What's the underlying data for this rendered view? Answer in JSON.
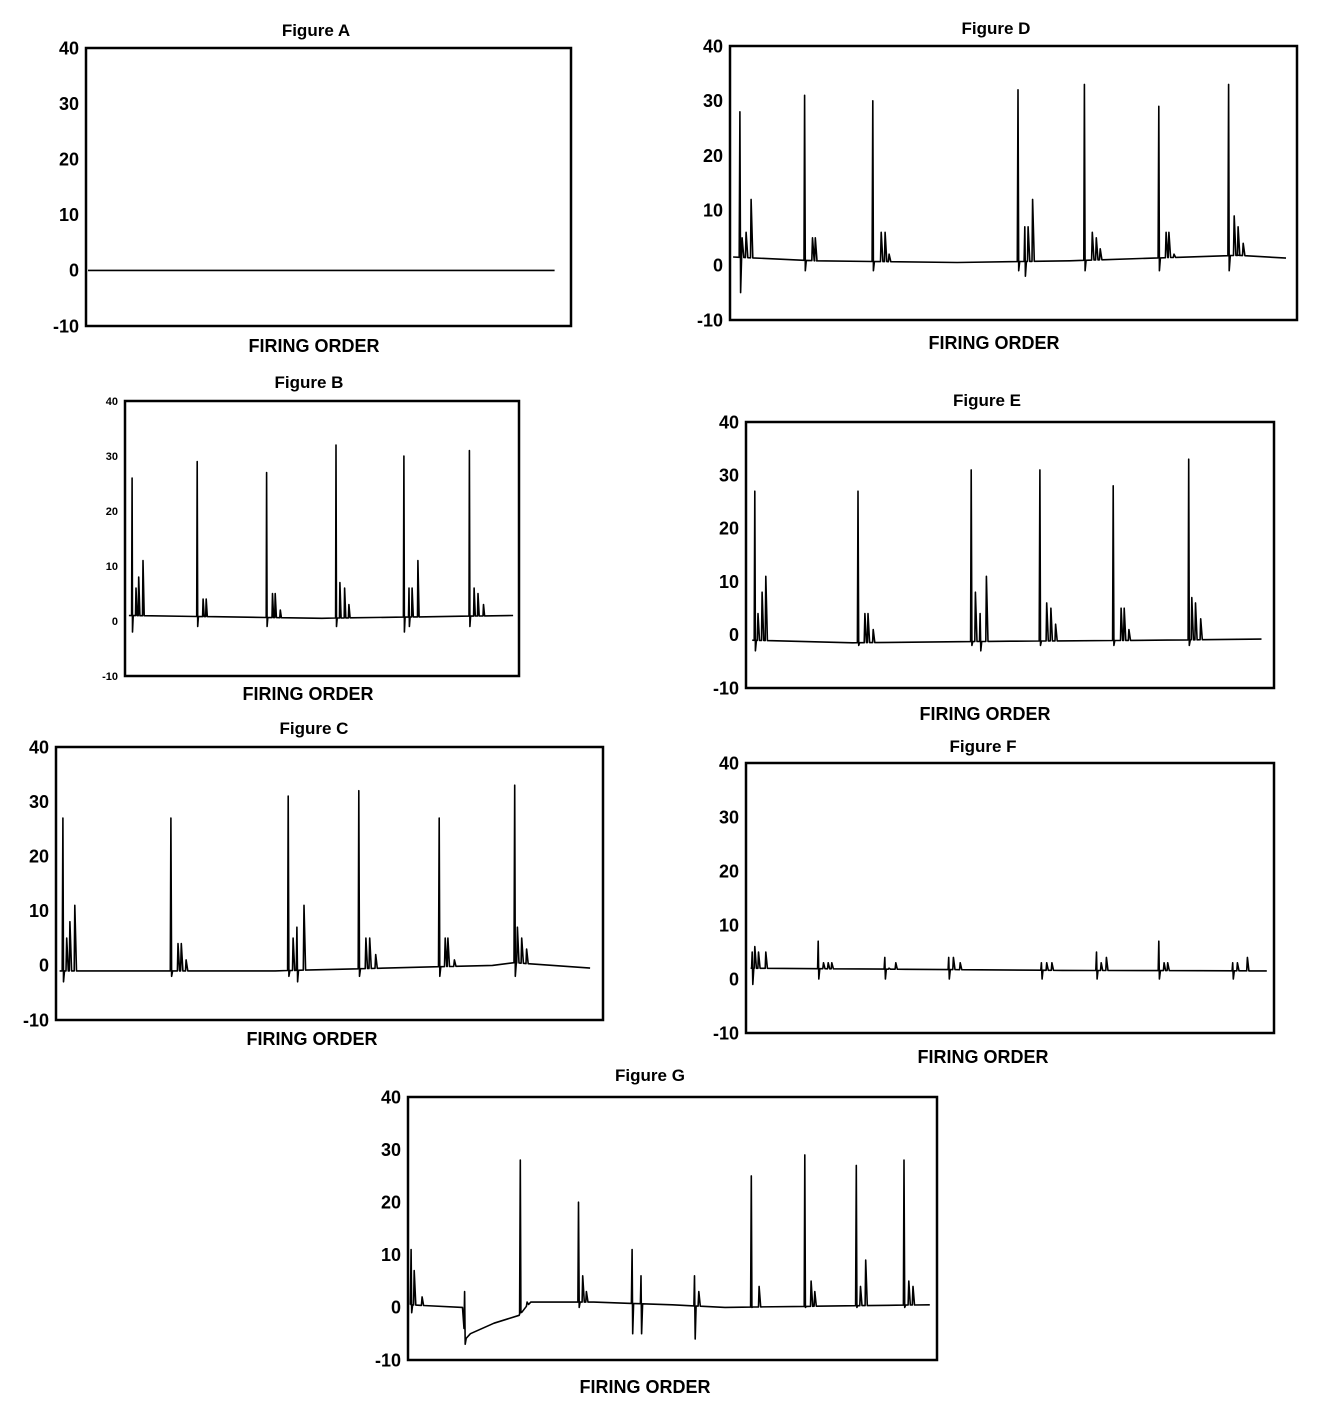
{
  "chart_data": [
    {
      "id": "A",
      "type": "line",
      "title": "Figure A",
      "xlabel": "FIRING ORDER",
      "ylabel": "",
      "ylim": [
        -10,
        40
      ],
      "yticks": [
        "40",
        "30",
        "20",
        "10",
        "0",
        "-10"
      ],
      "x_range": [
        0,
        97
      ],
      "baseline": [
        [
          0,
          0
        ],
        [
          97,
          0
        ]
      ],
      "spikes": []
    },
    {
      "id": "B",
      "type": "line",
      "title": "Figure B",
      "xlabel": "FIRING ORDER",
      "ylabel": "",
      "ylim": [
        -10,
        40
      ],
      "yticks": [
        "40",
        "30",
        "20",
        "10",
        "0",
        "-10"
      ],
      "x_range": [
        0.5,
        99
      ],
      "baseline": [
        [
          0,
          1
        ],
        [
          50,
          0.5
        ],
        [
          99,
          1
        ]
      ],
      "spikes": [
        [
          1.3,
          26,
          -2
        ],
        [
          2.3,
          6
        ],
        [
          3,
          8
        ],
        [
          4.1,
          11
        ],
        [
          18,
          29,
          -1
        ],
        [
          19.5,
          4
        ],
        [
          20.3,
          4
        ],
        [
          35.8,
          27,
          -1
        ],
        [
          37.3,
          5
        ],
        [
          38,
          5
        ],
        [
          39.3,
          2
        ],
        [
          53.6,
          32,
          -1
        ],
        [
          54.6,
          7
        ],
        [
          55.8,
          6
        ],
        [
          56.9,
          3
        ],
        [
          71,
          30,
          -2
        ],
        [
          72.3,
          6,
          -1
        ],
        [
          73.1,
          6
        ],
        [
          74.6,
          11
        ],
        [
          87.8,
          31,
          -1
        ],
        [
          89,
          6
        ],
        [
          90,
          5
        ],
        [
          91.4,
          3
        ]
      ]
    },
    {
      "id": "C",
      "type": "line",
      "title": "Figure C",
      "xlabel": "FIRING ORDER",
      "ylabel": "",
      "ylim": [
        -10,
        40
      ],
      "yticks": [
        "40",
        "30",
        "20",
        "10",
        "0",
        "-10"
      ],
      "x_range": [
        0.3,
        98
      ],
      "baseline": [
        [
          0,
          -1
        ],
        [
          40,
          -1
        ],
        [
          80,
          0
        ],
        [
          84,
          0.5
        ],
        [
          98,
          -0.5
        ]
      ],
      "spikes": [
        [
          0.9,
          27,
          -3
        ],
        [
          1.6,
          5
        ],
        [
          2.2,
          8
        ],
        [
          3.1,
          11
        ],
        [
          20.8,
          27,
          -2
        ],
        [
          22.1,
          4
        ],
        [
          22.7,
          4
        ],
        [
          23.6,
          1
        ],
        [
          42.4,
          31,
          -2
        ],
        [
          43.3,
          5
        ],
        [
          44,
          7,
          -3
        ],
        [
          45.3,
          11
        ],
        [
          55.4,
          32,
          -2
        ],
        [
          56.7,
          5
        ],
        [
          57.4,
          5
        ],
        [
          58.5,
          2
        ],
        [
          70.2,
          27,
          -2
        ],
        [
          71.3,
          5
        ],
        [
          71.8,
          5
        ],
        [
          73,
          1
        ],
        [
          84.1,
          33,
          -2
        ],
        [
          84.6,
          7
        ],
        [
          85.4,
          5
        ],
        [
          86.3,
          3
        ]
      ]
    },
    {
      "id": "D",
      "type": "line",
      "title": "Figure D",
      "xlabel": "FIRING ORDER",
      "ylabel": "",
      "ylim": [
        -10,
        40
      ],
      "yticks": [
        "40",
        "30",
        "20",
        "10",
        "0",
        "-10"
      ],
      "x_range": [
        0.2,
        98.4
      ],
      "baseline": [
        [
          0,
          1.5
        ],
        [
          15,
          0.8
        ],
        [
          40,
          0.5
        ],
        [
          60,
          0.8
        ],
        [
          90,
          1.8
        ],
        [
          98.4,
          1.3
        ]
      ],
      "spikes": [
        [
          1.4,
          28,
          -5
        ],
        [
          1.8,
          5
        ],
        [
          2.5,
          6
        ],
        [
          3.4,
          12
        ],
        [
          12.9,
          31,
          -1
        ],
        [
          14.3,
          5
        ],
        [
          14.8,
          5
        ],
        [
          25,
          30,
          -1
        ],
        [
          26.5,
          6
        ],
        [
          27.2,
          6
        ],
        [
          27.9,
          2
        ],
        [
          50.8,
          32,
          -1
        ],
        [
          52,
          7,
          -2
        ],
        [
          52.6,
          7
        ],
        [
          53.4,
          12
        ],
        [
          62.6,
          33,
          -1
        ],
        [
          64,
          6
        ],
        [
          64.7,
          5
        ],
        [
          65.4,
          3
        ],
        [
          75.8,
          29,
          -1
        ],
        [
          77.1,
          6
        ],
        [
          77.6,
          6
        ],
        [
          78.5,
          2
        ],
        [
          88.2,
          33,
          -1
        ],
        [
          89.2,
          9
        ],
        [
          89.9,
          7
        ],
        [
          90.8,
          4
        ]
      ]
    },
    {
      "id": "E",
      "type": "line",
      "title": "Figure E",
      "xlabel": "FIRING ORDER",
      "ylabel": "",
      "ylim": [
        -10,
        40
      ],
      "yticks": [
        "40",
        "30",
        "20",
        "10",
        "0",
        "-10"
      ],
      "x_range": [
        0.8,
        98
      ],
      "baseline": [
        [
          0,
          -1
        ],
        [
          20,
          -1.5
        ],
        [
          50,
          -1.2
        ],
        [
          80,
          -1
        ],
        [
          98,
          -0.8
        ]
      ],
      "spikes": [
        [
          1.3,
          27,
          -3
        ],
        [
          1.9,
          4
        ],
        [
          2.7,
          8
        ],
        [
          3.4,
          11
        ],
        [
          21,
          27,
          -2
        ],
        [
          22.3,
          4
        ],
        [
          22.9,
          4
        ],
        [
          23.9,
          1
        ],
        [
          42.6,
          31,
          -2
        ],
        [
          43.4,
          8
        ],
        [
          44.3,
          4,
          -3
        ],
        [
          45.5,
          11
        ],
        [
          55.7,
          31,
          -2
        ],
        [
          57,
          6
        ],
        [
          57.8,
          5
        ],
        [
          58.7,
          2
        ],
        [
          69.7,
          28,
          -2
        ],
        [
          71.2,
          5
        ],
        [
          71.8,
          5
        ],
        [
          72.7,
          1
        ],
        [
          84.1,
          33,
          -2
        ],
        [
          84.7,
          7
        ],
        [
          85.4,
          6
        ],
        [
          86.4,
          3
        ]
      ]
    },
    {
      "id": "F",
      "type": "line",
      "title": "Figure F",
      "xlabel": "FIRING ORDER",
      "ylabel": "",
      "ylim": [
        -10,
        40
      ],
      "yticks": [
        "40",
        "30",
        "20",
        "10",
        "0",
        "-10"
      ],
      "x_range": [
        0.5,
        99
      ],
      "baseline": [
        [
          0,
          2
        ],
        [
          30,
          1.8
        ],
        [
          60,
          1.6
        ],
        [
          99,
          1.5
        ]
      ],
      "spikes": [
        [
          0.8,
          5,
          -1
        ],
        [
          1.3,
          6
        ],
        [
          2,
          5
        ],
        [
          3.4,
          5
        ],
        [
          13.4,
          7,
          0
        ],
        [
          14.4,
          3
        ],
        [
          15.3,
          3
        ],
        [
          16,
          3
        ],
        [
          26.1,
          4,
          0
        ],
        [
          26.9,
          2
        ],
        [
          28.2,
          3
        ],
        [
          38.3,
          4,
          0
        ],
        [
          39.2,
          4
        ],
        [
          40.5,
          3
        ],
        [
          56,
          3,
          0
        ],
        [
          57,
          3
        ],
        [
          58,
          3
        ],
        [
          66.5,
          5,
          0
        ],
        [
          67.4,
          3
        ],
        [
          68.4,
          4
        ],
        [
          78.4,
          7,
          0
        ],
        [
          79.4,
          3
        ],
        [
          80.1,
          3
        ],
        [
          92.5,
          3,
          0
        ],
        [
          93.4,
          3
        ],
        [
          95.3,
          4
        ]
      ]
    },
    {
      "id": "G",
      "type": "line",
      "title": "Figure G",
      "xlabel": "FIRING ORDER",
      "ylabel": "",
      "ylim": [
        -10,
        40
      ],
      "yticks": [
        "40",
        "30",
        "20",
        "10",
        "0",
        "-10"
      ],
      "x_range": [
        0.2,
        99
      ],
      "baseline": [
        [
          0,
          0.5
        ],
        [
          10,
          0
        ],
        [
          10.6,
          -6
        ],
        [
          11.5,
          -5
        ],
        [
          16,
          -3
        ],
        [
          20.8,
          -1.5
        ],
        [
          23,
          1
        ],
        [
          35,
          1
        ],
        [
          50,
          0.5
        ],
        [
          60,
          0
        ],
        [
          99,
          0.5
        ]
      ],
      "spikes": [
        [
          0.2,
          11,
          -1
        ],
        [
          0.8,
          7
        ],
        [
          2.3,
          2
        ],
        [
          10.4,
          3,
          -7
        ],
        [
          21,
          28,
          -1
        ],
        [
          22.3,
          1
        ],
        [
          32.1,
          20,
          0
        ],
        [
          32.9,
          6
        ],
        [
          33.6,
          3
        ],
        [
          42.3,
          11,
          -5
        ],
        [
          44,
          6,
          -5
        ],
        [
          54.2,
          6,
          -6
        ],
        [
          55,
          3
        ],
        [
          65,
          25,
          0
        ],
        [
          66.5,
          4
        ],
        [
          75.2,
          29,
          0
        ],
        [
          76.4,
          5
        ],
        [
          77.1,
          3
        ],
        [
          85,
          27,
          0
        ],
        [
          85.8,
          4
        ],
        [
          86.8,
          9
        ],
        [
          94.1,
          28,
          0
        ],
        [
          95,
          5
        ],
        [
          95.8,
          4
        ]
      ]
    }
  ]
}
